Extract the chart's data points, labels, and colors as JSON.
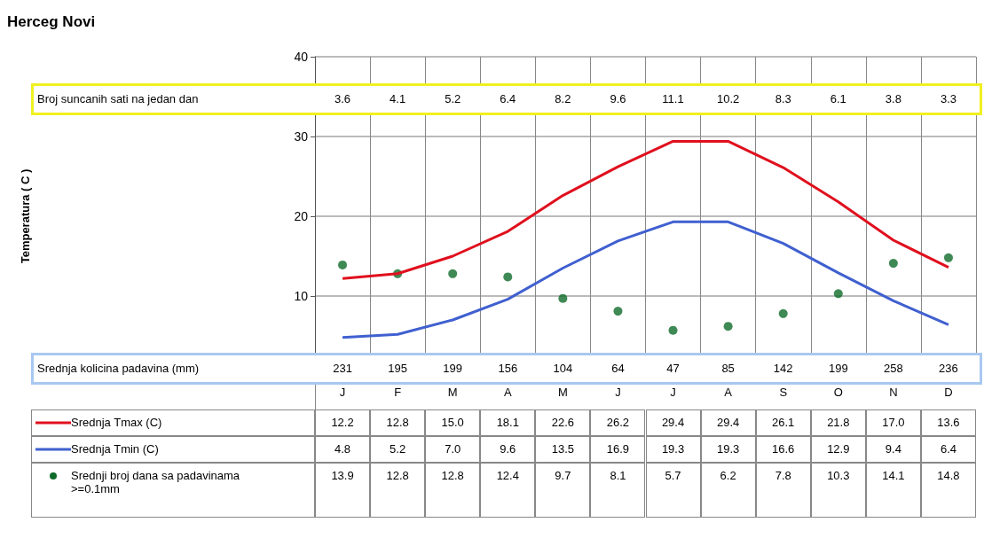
{
  "chart_data": [
    {
      "type": "line",
      "ylabel": "Temperatura ( C )",
      "categories": [
        "J",
        "F",
        "M",
        "A",
        "M",
        "J",
        "J",
        "A",
        "S",
        "O",
        "N",
        "D"
      ],
      "ylim": [
        0,
        40
      ],
      "yticks": [
        10,
        20,
        30,
        40
      ],
      "grid": true,
      "legend": "bottom",
      "series": [
        {
          "name": "Srednja Tmax (C)",
          "color": "#e0101e",
          "marker": "none",
          "values": [
            12.2,
            12.8,
            15.0,
            18.1,
            22.6,
            26.2,
            29.4,
            29.4,
            26.1,
            21.8,
            17.0,
            13.6
          ],
          "value_labels": [
            "12.2",
            "12.8",
            "15.0",
            "18.1",
            "22.6",
            "26.2",
            "29.4",
            "29.4",
            "26.1",
            "21.8",
            "17.0",
            "13.6"
          ]
        },
        {
          "name": "Srednja Tmin (C)",
          "color": "#4060d0",
          "marker": "none",
          "values": [
            4.8,
            5.2,
            7.0,
            9.6,
            13.5,
            16.9,
            19.3,
            19.3,
            16.6,
            12.9,
            9.4,
            6.4
          ],
          "value_labels": [
            "4.8",
            "5.2",
            "7.0",
            "9.6",
            "13.5",
            "16.9",
            "19.3",
            "19.3",
            "16.6",
            "12.9",
            "9.4",
            "6.4"
          ]
        },
        {
          "name": "Srednji broj dana sa padavinama >=0.1mm",
          "type": "scatter",
          "color": "#0f6b2a",
          "marker": "circle",
          "values": [
            13.9,
            12.8,
            12.8,
            12.4,
            9.7,
            8.1,
            5.7,
            6.2,
            7.8,
            10.3,
            14.1,
            14.8
          ],
          "value_labels": [
            "13.9",
            "12.8",
            "12.8",
            "12.4",
            "9.7",
            "8.1",
            "5.7",
            "6.2",
            "7.8",
            "10.3",
            "14.1",
            "14.8"
          ]
        }
      ]
    },
    {
      "type": "other",
      "subtitle": "Herceg Novi",
      "title": "Broj suncanih sati na jedan dan",
      "color": "#f0f020",
      "data_labels": true,
      "values": [
        3.6,
        4.1,
        5.2,
        6.4,
        8.2,
        9.6,
        11.1,
        10.2,
        8.3,
        6.1,
        3.8,
        3.3
      ]
    },
    {
      "type": "other",
      "title": "Srednja kolicina padavina (mm)",
      "color": "#a8c8f0",
      "data_labels": true,
      "values": [
        231,
        195,
        199,
        156,
        104,
        64,
        47,
        85,
        142,
        199,
        258,
        236
      ]
    }
  ]
}
